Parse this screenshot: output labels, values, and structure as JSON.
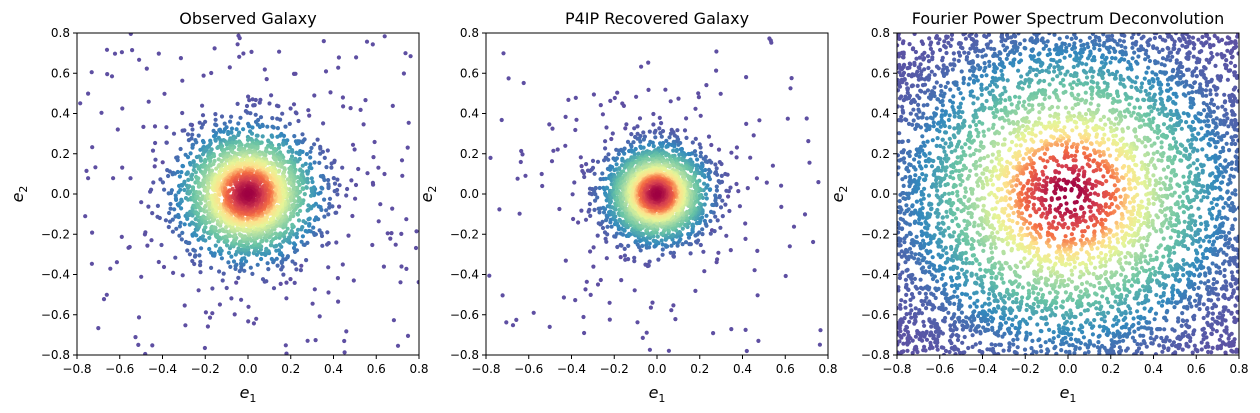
{
  "chart_data": [
    {
      "type": "scatter",
      "title": "Observed Galaxy",
      "xlabel": "e",
      "xlabel_sub": "1",
      "ylabel": "e",
      "ylabel_sub": "2",
      "xlim": [
        -0.8,
        0.8
      ],
      "ylim": [
        -0.8,
        0.8
      ],
      "xticks": [
        "−0.8",
        "−0.6",
        "−0.4",
        "−0.2",
        "0.0",
        "0.2",
        "0.4",
        "0.6",
        "0.8"
      ],
      "yticks": [
        "−0.8",
        "−0.6",
        "−0.4",
        "−0.2",
        "0.0",
        "0.2",
        "0.4",
        "0.6",
        "0.8"
      ],
      "colormap": "Spectral_r (color = point density)",
      "center": [
        0.0,
        0.0
      ],
      "spread_sigma": 0.16,
      "grid": false
    },
    {
      "type": "scatter",
      "title": "P4IP Recovered Galaxy",
      "xlabel": "e",
      "xlabel_sub": "1",
      "ylabel": "e",
      "ylabel_sub": "2",
      "xlim": [
        -0.8,
        0.8
      ],
      "ylim": [
        -0.8,
        0.8
      ],
      "xticks": [
        "−0.8",
        "−0.6",
        "−0.4",
        "−0.2",
        "0.0",
        "0.2",
        "0.4",
        "0.6",
        "0.8"
      ],
      "yticks": [
        "−0.8",
        "−0.6",
        "−0.4",
        "−0.2",
        "0.0",
        "0.2",
        "0.4",
        "0.6",
        "0.8"
      ],
      "colormap": "Spectral_r (color = point density)",
      "center": [
        0.0,
        0.0
      ],
      "spread_sigma": 0.12,
      "grid": false
    },
    {
      "type": "scatter",
      "title": "Fourier Power Spectrum Deconvolution",
      "xlabel": "e",
      "xlabel_sub": "1",
      "ylabel": "e",
      "ylabel_sub": "2",
      "xlim": [
        -0.8,
        0.8
      ],
      "ylim": [
        -0.8,
        0.8
      ],
      "xticks": [
        "−0.8",
        "−0.6",
        "−0.4",
        "−0.2",
        "0.0",
        "0.2",
        "0.4",
        "0.6",
        "0.8"
      ],
      "yticks": [
        "−0.8",
        "−0.6",
        "−0.4",
        "−0.2",
        "0.0",
        "0.2",
        "0.4",
        "0.6",
        "0.8"
      ],
      "colormap": "Spectral_r (color = point density)",
      "center": [
        0.0,
        0.0
      ],
      "spread_sigma": 0.34,
      "grid": false
    }
  ],
  "colors": {
    "sparse": "#5e4fa2",
    "mid_low": "#3288bd",
    "mid": "#66c2a5",
    "light": "#e6f598",
    "pale": "#fee08b",
    "warm": "#f46d43",
    "dense": "#9e0142"
  }
}
